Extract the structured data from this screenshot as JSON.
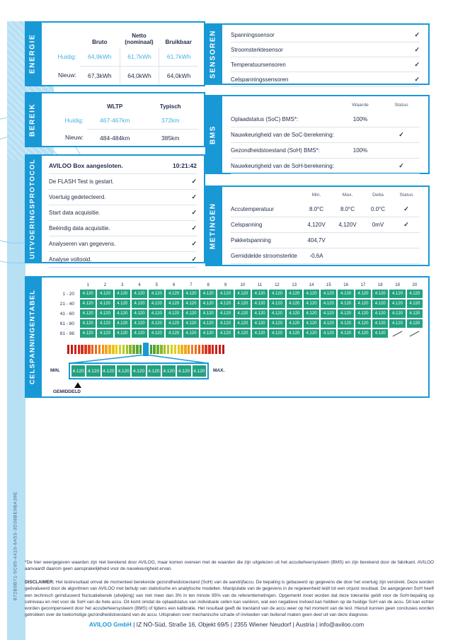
{
  "ui": {
    "check_glyph": "✓"
  },
  "colors": {
    "accent_blue": "#1899d6",
    "value_blue": "#47b1e3",
    "navy": "#1f2b49",
    "cell_green": "#21a17f",
    "bg_lightblue": "#b7e0f5"
  },
  "energie": {
    "tab": "ENERGIE",
    "col_headers": [
      "Bruto",
      "Netto (nominaal)",
      "Bruikbaar"
    ],
    "rows": [
      {
        "label": "Huidig:",
        "values": [
          "64,9kWh",
          "61,7kWh",
          "61,7kWh"
        ]
      },
      {
        "label": "Nieuw:",
        "values": [
          "67,3kWh",
          "64,0kWh",
          "64,0kWh"
        ]
      }
    ]
  },
  "bereik": {
    "tab": "BEREIK",
    "col_headers": [
      "WLTP",
      "Typisch"
    ],
    "rows": [
      {
        "label": "Huidig:",
        "values": [
          "467-467km",
          "372km"
        ]
      },
      {
        "label": "Nieuw:",
        "values": [
          "484-484km",
          "385km"
        ]
      }
    ]
  },
  "protocol": {
    "tab": "UITVOERINGSPROTOCOL",
    "header_label": "AVILOO Box aangesloten.",
    "header_time": "10:21:42",
    "items": [
      "De FLASH Test is gestart.",
      "Voertuig gedetecteerd.",
      "Start data acquisitie.",
      "Beëindig data acquisitie.",
      "Analyseren van gegevens.",
      "Analyse voltooid."
    ]
  },
  "sensoren": {
    "tab": "SENSOREN",
    "items": [
      "Spanningssensor",
      "Stroomsterktesensor",
      "Temperatuursensoren",
      "Celspanningssensoren"
    ]
  },
  "bms": {
    "tab": "BMS",
    "col_headers": [
      "Waarde",
      "Status"
    ],
    "rows": [
      {
        "label": "Oplaadstatus (SoC) BMS*:",
        "waarde": "100%",
        "check": false
      },
      {
        "label": "Nauwkeurigheid van de SoC-berekening:",
        "waarde": "",
        "check": true
      },
      {
        "label": "Gezondheidstoestand (SoH) BMS*:",
        "waarde": "100%",
        "check": false
      },
      {
        "label": "Nauwkeurigheid van de SoH-berekening:",
        "waarde": "",
        "check": true
      }
    ]
  },
  "metingen": {
    "tab": "METINGEN",
    "col_headers": [
      "Min.",
      "Max.",
      "Delta",
      "Status"
    ],
    "rows": [
      {
        "label": "Accutemperatuur",
        "min": "8.0°C",
        "max": "8.0°C",
        "delta": "0.0°C",
        "check": true
      },
      {
        "label": "Celspanning",
        "min": "4,120V",
        "max": "4,120V",
        "delta": "0mV",
        "check": true
      },
      {
        "label": "Pakketspanning",
        "min": "404,7V",
        "max": "",
        "delta": "",
        "check": false
      },
      {
        "label": "Gemiddelde stroomsterkte",
        "min": "-0,6A",
        "max": "",
        "delta": "",
        "check": false
      }
    ]
  },
  "celtabel": {
    "tab": "CELSPANNINGENTABEL",
    "cell_value": "4.120",
    "col_numbers": [
      1,
      2,
      3,
      4,
      5,
      6,
      7,
      8,
      9,
      10,
      11,
      12,
      13,
      14,
      15,
      16,
      17,
      18,
      19,
      20
    ],
    "rows": [
      {
        "label": "1 - 20",
        "count": 20
      },
      {
        "label": "21 - 40",
        "count": 20
      },
      {
        "label": "41 - 60",
        "count": 20
      },
      {
        "label": "61 - 80",
        "count": 20
      },
      {
        "label": "81 - 98",
        "count": 18
      }
    ],
    "zoom": {
      "min_label": "MIN.",
      "max_label": "MAX.",
      "cell_count": 9,
      "avg_label": "GEMIDDELD"
    },
    "gradient_segments": [
      "#bf1a17",
      "#c51d18",
      "#cb211a",
      "#d1261c",
      "#d72c1e",
      "#dd3a1e",
      "#e24a1d",
      "#e75c1c",
      "#ec6e1b",
      "#f0801a",
      "#f39318",
      "#f5a517",
      "#f0b515",
      "#ecc314",
      "#e3cd16",
      "#d2d01b",
      "#bcca1f",
      "#a3c123",
      "#89b827",
      "#6fae2b",
      "#57a52e",
      "#459e30",
      "#379831",
      "#379831",
      "#459e30",
      "#57a52e",
      "#6fae2b",
      "#89b827",
      "#a3c123",
      "#bcca1f",
      "#d2d01b",
      "#e3cd16",
      "#ecc314",
      "#f0b515",
      "#f5a517",
      "#f39318",
      "#f0801a",
      "#ec6e1b",
      "#e75c1c",
      "#e24a1d",
      "#dd3a1e",
      "#d72c1e",
      "#d1261c",
      "#cb211a",
      "#c51d18",
      "#bf1a17"
    ]
  },
  "page": {
    "uuid": "872B0B71-5C65-4410-9A53-3D38BE9BA39E",
    "footnote": "*De hier weergegeven waarden zijn niet berekend door AVILOO, maar komen overeen met de waarden die zijn uitgelezen uit het accubeheersysteem (BMS) en zijn berekend door de fabrikant. AVILOO aanvaardt daarom geen aansprakelijkheid voor de nauwkeurigheid ervan.",
    "disclaimer_label": "DISCLAIMER:",
    "disclaimer_text": " Het testresultaat omvat de momenteel berekende gezondheidstoestand (SoH) van de aandrijfaccu. De bepaling is gebaseerd op gegevens die door het voertuig zijn verstrekt. Deze worden geëvalueerd door de algoritmen van AVILOO met behulp van statistische en analytische modellen. Manipulatie van de gegevens in de regeleenheid leidt tot een onjuist resultaat. De aangegeven SoH heeft een technisch geïnduceerd fluctuatiebereik (afwijking) van niet meer dan 3% in ten minste 95% van de referentiemetingen. Opgemerkt moet worden dat deze tolerantie geldt voor de SoH-bepaling op celniveau en niet voor de SoH van de hele accu. Dit komt omdat de oplaadstatus van individuele cellen kan variëren, wat een negatieve invloed kan hebben op de huidige SoH van de accu. Dit kan echter worden gecompenseerd door het accubeheersysteem (BMS) of tijdens een kalibratie. Het resultaat geeft de toestand van de accu weer op het moment van de test. Hieruit kunnen geen conclusies worden getrokken over de toekomstige gezondheidstoestand van de accu. Uitspraken over mechanische schade of invloeden van buitenaf maken geen deel uit van deze diagnose.",
    "footer_brand": "AVILOO GmbH",
    "footer_rest": "  |  IZ NÖ-Süd, Straße 16, Objekt 69/5  |  2355 Wiener Neudorf  |  Austria  |  info@aviloo.com"
  }
}
